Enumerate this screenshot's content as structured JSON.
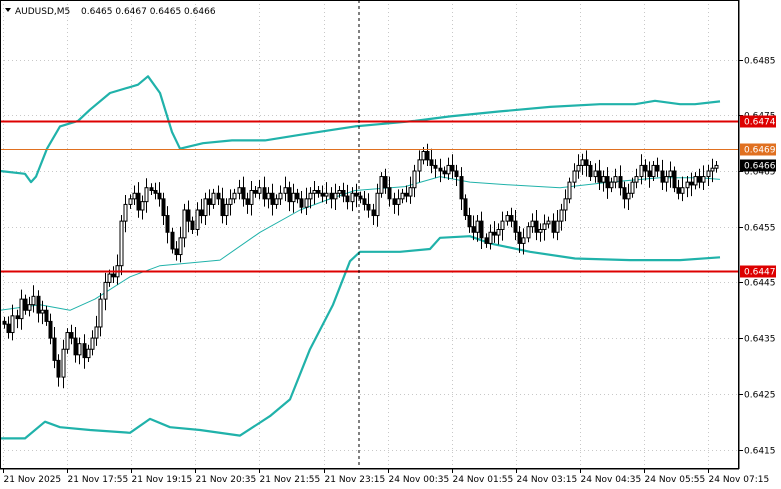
{
  "header": {
    "symbol_text": "AUDUSD,M5",
    "ohlc_text": "0.6465 0.6467 0.6465 0.6466",
    "menu_icon": "triangle-down-icon"
  },
  "colors": {
    "background": "#ffffff",
    "grid": "#c8c8c8",
    "candle": "#000000",
    "bands": "#20b2aa",
    "red_line": "#dd0000",
    "orange_line": "#e07020",
    "label_text": "#ffffff",
    "current_label_bg": "#000000"
  },
  "chart_data": {
    "type": "candlestick",
    "symbol": "AUDUSD",
    "timeframe": "M5",
    "ylim": [
      0.64115,
      0.64957
    ],
    "y_ticks": [
      "0.6485",
      "0.6475",
      "0.6465",
      "0.6455",
      "0.6445",
      "0.6435",
      "0.6425",
      "0.6415"
    ],
    "x_ticks": [
      "21 Nov 2025",
      "21 Nov 17:55",
      "21 Nov 19:15",
      "21 Nov 20:35",
      "21 Nov 21:55",
      "21 Nov 23:15",
      "24 Nov 00:35",
      "24 Nov 01:55",
      "24 Nov 03:15",
      "24 Nov 04:35",
      "24 Nov 05:55",
      "24 Nov 07:15"
    ],
    "grid": true,
    "candles_close": [
      0.64375,
      0.6436,
      0.6439,
      0.64385,
      0.6442,
      0.644,
      0.6441,
      0.64425,
      0.64395,
      0.644,
      0.6438,
      0.6435,
      0.6431,
      0.6428,
      0.6433,
      0.6436,
      0.6435,
      0.6432,
      0.6434,
      0.64315,
      0.6433,
      0.6435,
      0.6437,
      0.6442,
      0.6445,
      0.64465,
      0.6446,
      0.6448,
      0.6456,
      0.6459,
      0.646,
      0.6461,
      0.6458,
      0.64595,
      0.6462,
      0.64615,
      0.6461,
      0.646,
      0.6457,
      0.6454,
      0.6451,
      0.645,
      0.6453,
      0.6458,
      0.6456,
      0.64545,
      0.6458,
      0.6457,
      0.646,
      0.6459,
      0.6461,
      0.646,
      0.6457,
      0.6459,
      0.646,
      0.6461,
      0.6462,
      0.646,
      0.6459,
      0.64615,
      0.6461,
      0.6462,
      0.646,
      0.6461,
      0.6459,
      0.646,
      0.6461,
      0.6462,
      0.64595,
      0.6461,
      0.646,
      0.64585,
      0.646,
      0.6461,
      0.64615,
      0.6461,
      0.64605,
      0.6461,
      0.646,
      0.6461,
      0.64615,
      0.64605,
      0.64595,
      0.6461,
      0.64605,
      0.646,
      0.6459,
      0.6458,
      0.6457,
      0.6461,
      0.6464,
      0.6462,
      0.646,
      0.6459,
      0.646,
      0.6461,
      0.64605,
      0.6462,
      0.6465,
      0.6467,
      0.64685,
      0.6467,
      0.6466,
      0.64655,
      0.6465,
      0.64645,
      0.6466,
      0.6465,
      0.6464,
      0.646,
      0.6457,
      0.6455,
      0.6454,
      0.6456,
      0.6453,
      0.6452,
      0.6454,
      0.64535,
      0.64545,
      0.6456,
      0.6457,
      0.6456,
      0.6454,
      0.6452,
      0.6453,
      0.6455,
      0.6456,
      0.6454,
      0.64545,
      0.64555,
      0.6456,
      0.6454,
      0.6456,
      0.6458,
      0.646,
      0.6463,
      0.6465,
      0.6466,
      0.6467,
      0.6466,
      0.6464,
      0.6465,
      0.6463,
      0.6464,
      0.6462,
      0.6463,
      0.6464,
      0.6462,
      0.646,
      0.6461,
      0.6463,
      0.6464,
      0.6466,
      0.6465,
      0.6464,
      0.6466,
      0.6465,
      0.6463,
      0.6464,
      0.6465,
      0.6462,
      0.6461,
      0.6462,
      0.6463,
      0.64625,
      0.6464,
      0.6463,
      0.6464,
      0.6465,
      0.64655,
      0.6466
    ],
    "bollinger_upper": [
      [
        0,
        0.6465
      ],
      [
        25,
        0.64645
      ],
      [
        31,
        0.6463
      ],
      [
        36,
        0.6464
      ],
      [
        47,
        0.6469
      ],
      [
        60,
        0.6473
      ],
      [
        78,
        0.6474
      ],
      [
        90,
        0.6476
      ],
      [
        110,
        0.6479
      ],
      [
        138,
        0.64805
      ],
      [
        148,
        0.6482
      ],
      [
        160,
        0.6479
      ],
      [
        172,
        0.6472
      ],
      [
        180,
        0.6469
      ],
      [
        203,
        0.647
      ],
      [
        232,
        0.64705
      ],
      [
        250,
        0.64705
      ],
      [
        265,
        0.64705
      ],
      [
        300,
        0.64715
      ],
      [
        355,
        0.6473
      ],
      [
        415,
        0.6474
      ],
      [
        450,
        0.64748
      ],
      [
        500,
        0.64757
      ],
      [
        550,
        0.64765
      ],
      [
        600,
        0.6477
      ],
      [
        635,
        0.6477
      ],
      [
        655,
        0.64776
      ],
      [
        680,
        0.6477
      ],
      [
        695,
        0.6477
      ],
      [
        720,
        0.64775
      ]
    ],
    "bollinger_middle": [
      [
        0,
        0.644
      ],
      [
        40,
        0.6441
      ],
      [
        70,
        0.644
      ],
      [
        95,
        0.6442
      ],
      [
        130,
        0.6446
      ],
      [
        160,
        0.6448
      ],
      [
        220,
        0.6449
      ],
      [
        260,
        0.6454
      ],
      [
        300,
        0.6458
      ],
      [
        330,
        0.646
      ],
      [
        355,
        0.64615
      ],
      [
        405,
        0.64622
      ],
      [
        440,
        0.6464
      ],
      [
        470,
        0.6463
      ],
      [
        510,
        0.64625
      ],
      [
        560,
        0.6462
      ],
      [
        610,
        0.6463
      ],
      [
        660,
        0.64638
      ],
      [
        700,
        0.64638
      ],
      [
        720,
        0.64635
      ]
    ],
    "bollinger_lower": [
      [
        0,
        0.6417
      ],
      [
        25,
        0.6417
      ],
      [
        45,
        0.642
      ],
      [
        60,
        0.6419
      ],
      [
        90,
        0.64185
      ],
      [
        130,
        0.6418
      ],
      [
        150,
        0.64205
      ],
      [
        170,
        0.6419
      ],
      [
        200,
        0.64185
      ],
      [
        240,
        0.64175
      ],
      [
        270,
        0.6421
      ],
      [
        290,
        0.6424
      ],
      [
        310,
        0.6433
      ],
      [
        333,
        0.6441
      ],
      [
        350,
        0.64488
      ],
      [
        360,
        0.64505
      ],
      [
        400,
        0.64505
      ],
      [
        430,
        0.6451
      ],
      [
        440,
        0.6453
      ],
      [
        470,
        0.64533
      ],
      [
        490,
        0.6452
      ],
      [
        530,
        0.64505
      ],
      [
        575,
        0.64493
      ],
      [
        630,
        0.6449
      ],
      [
        680,
        0.6449
      ],
      [
        720,
        0.64495
      ]
    ],
    "horizontal_levels": [
      {
        "label": "0.6474",
        "value": 0.6474,
        "style": "red"
      },
      {
        "label": "0.6469",
        "value": 0.6469,
        "style": "orange"
      },
      {
        "label": "0.6447",
        "value": 0.6447,
        "style": "red"
      }
    ],
    "current_price": {
      "label": "0.6466",
      "value": 0.6466
    },
    "vertical_marker_x": 359
  }
}
